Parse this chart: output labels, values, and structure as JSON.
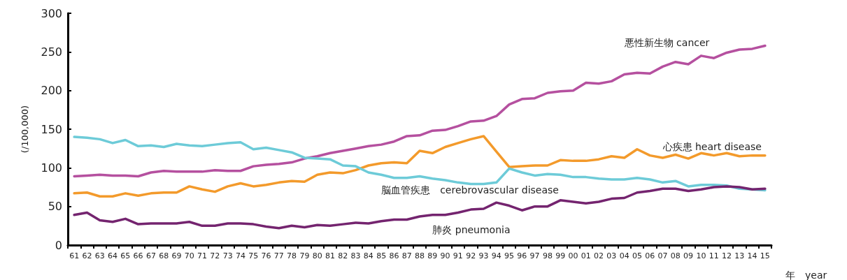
{
  "chart_data": {
    "type": "line",
    "ylabel": "(/100,000)",
    "xlabel": "年　year",
    "categories": [
      "61",
      "62",
      "63",
      "64",
      "65",
      "66",
      "67",
      "68",
      "69",
      "70",
      "71",
      "72",
      "73",
      "74",
      "75",
      "76",
      "77",
      "78",
      "79",
      "80",
      "81",
      "82",
      "83",
      "84",
      "85",
      "86",
      "87",
      "88",
      "89",
      "90",
      "91",
      "92",
      "93",
      "94",
      "95",
      "96",
      "97",
      "98",
      "99",
      "00",
      "01",
      "02",
      "03",
      "04",
      "05",
      "06",
      "07",
      "08",
      "09",
      "10",
      "11",
      "12",
      "13",
      "14",
      "15"
    ],
    "series": [
      {
        "name": "悪性新生物 cancer",
        "color": "#b5509f",
        "values": [
          89,
          90,
          91,
          90,
          90,
          89,
          94,
          96,
          95,
          95,
          95,
          97,
          96,
          96,
          102,
          104,
          105,
          107,
          112,
          115,
          119,
          122,
          125,
          128,
          130,
          134,
          141,
          142,
          148,
          149,
          154,
          160,
          161,
          167,
          182,
          189,
          190,
          197,
          199,
          200,
          210,
          209,
          212,
          221,
          223,
          222,
          231,
          237,
          234,
          245,
          242,
          249,
          253,
          254,
          258
        ]
      },
      {
        "name": "心疾患 heart disease",
        "color": "#f39a2b",
        "values": [
          67,
          68,
          63,
          63,
          67,
          64,
          67,
          68,
          68,
          76,
          72,
          69,
          76,
          80,
          76,
          78,
          81,
          83,
          82,
          91,
          94,
          93,
          97,
          103,
          106,
          107,
          106,
          122,
          119,
          127,
          132,
          137,
          141,
          121,
          101,
          102,
          103,
          103,
          110,
          109,
          109,
          111,
          115,
          113,
          124,
          116,
          113,
          117,
          112,
          119,
          116,
          119,
          115,
          116,
          116
        ]
      },
      {
        "name": "脳血管疾患　cerebrovascular disease",
        "color": "#6dcbd8",
        "values": [
          140,
          139,
          137,
          132,
          136,
          128,
          129,
          127,
          131,
          129,
          128,
          130,
          132,
          133,
          124,
          126,
          123,
          120,
          113,
          112,
          111,
          103,
          102,
          94,
          91,
          87,
          87,
          89,
          86,
          84,
          81,
          79,
          79,
          81,
          99,
          94,
          90,
          92,
          91,
          88,
          88,
          86,
          85,
          85,
          87,
          85,
          81,
          83,
          76,
          78,
          78,
          77,
          73,
          72,
          71
        ]
      },
      {
        "name": "肺炎 pneumonia",
        "color": "#74246f",
        "values": [
          39,
          42,
          32,
          30,
          34,
          27,
          28,
          28,
          28,
          30,
          25,
          25,
          28,
          28,
          27,
          24,
          22,
          25,
          23,
          26,
          25,
          27,
          29,
          28,
          31,
          33,
          33,
          37,
          39,
          39,
          42,
          46,
          47,
          55,
          51,
          45,
          50,
          50,
          58,
          56,
          54,
          56,
          60,
          61,
          68,
          70,
          73,
          73,
          70,
          72,
          75,
          76,
          75,
          72,
          73
        ]
      }
    ],
    "ylim": [
      0,
      300
    ],
    "yticks": [
      0,
      50,
      100,
      150,
      200,
      250,
      300
    ],
    "grid": false,
    "legend": false,
    "marker": "none",
    "line_style": "solid"
  }
}
